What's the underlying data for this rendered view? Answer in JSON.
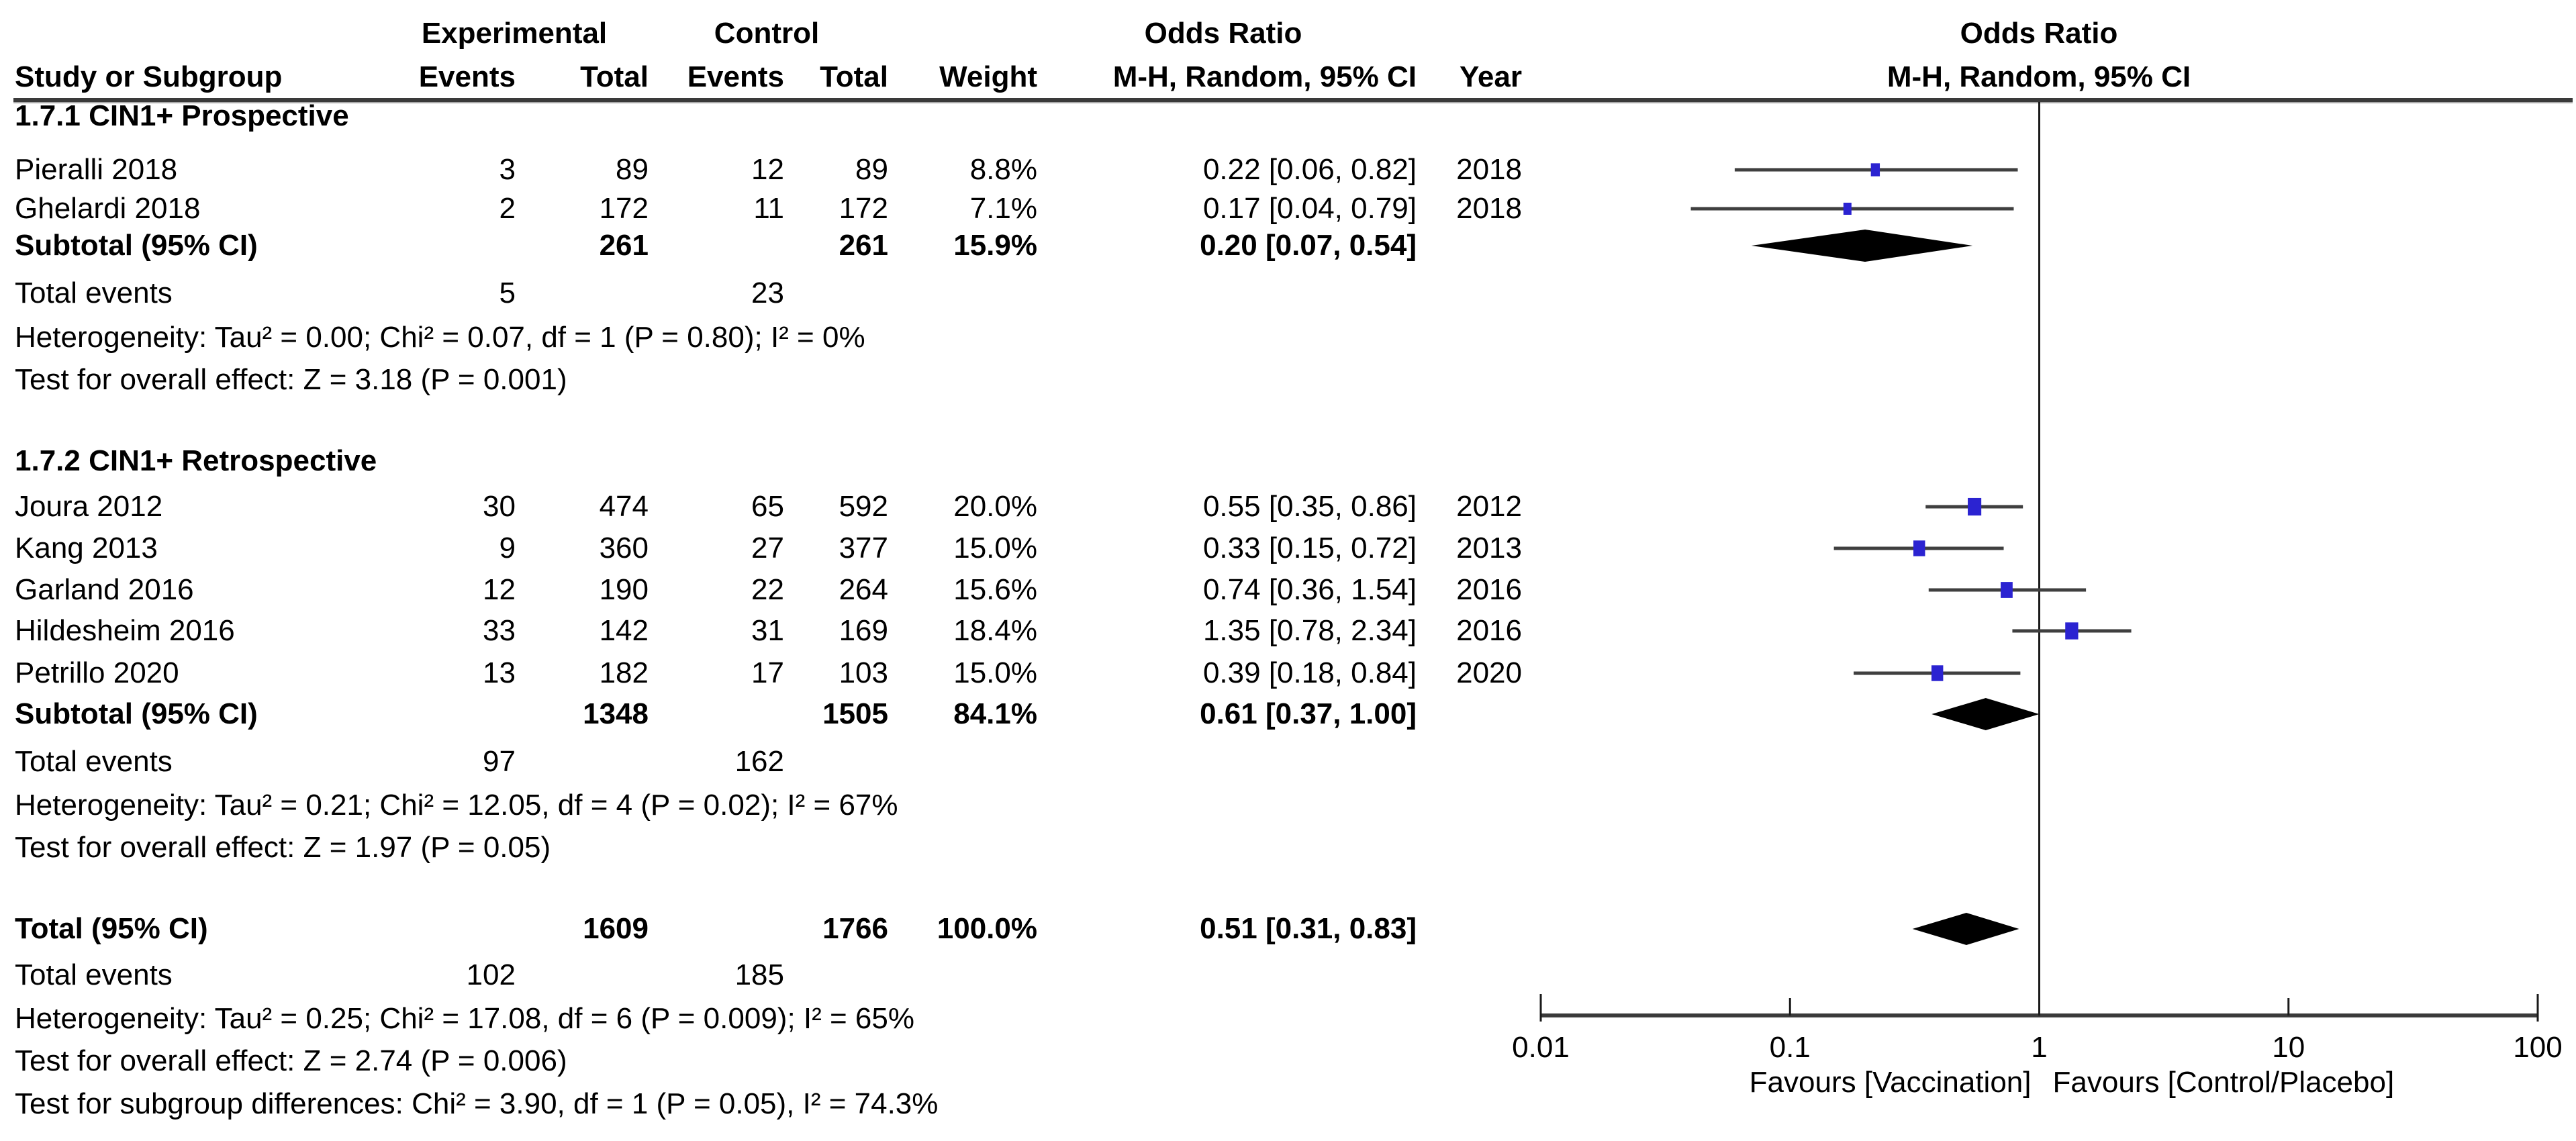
{
  "header": {
    "experimental": "Experimental",
    "control": "Control",
    "odds_ratio_left": "Odds Ratio",
    "odds_ratio_right": "Odds Ratio",
    "study_or_subgroup": "Study or Subgroup",
    "events_exp": "Events",
    "total_exp": "Total",
    "events_ctl": "Events",
    "total_ctl": "Total",
    "weight": "Weight",
    "mh_left": "M-H, Random, 95% CI",
    "year": "Year",
    "mh_right": "M-H, Random, 95% CI"
  },
  "colors": {
    "marker_blue": "#2B23D1",
    "ci_line_gray": "#3F3F3F",
    "rule_gray": "#3A3A3A",
    "rule_light": "#AAAAAA",
    "diamond_black": "#000000",
    "null_line": "#1A1A1A"
  },
  "chart_data": {
    "type": "forest",
    "effect_measure": "Odds Ratio",
    "method": "M-H, Random, 95% CI",
    "axis": {
      "scale": "log",
      "ticks": [
        "0.01",
        "0.1",
        "1",
        "10",
        "100"
      ],
      "tick_values": [
        0.01,
        0.1,
        1,
        10,
        100
      ],
      "favours_left": "Favours [Vaccination]",
      "favours_right": "Favours [Control/Placebo]"
    },
    "groups": [
      {
        "label": "1.7.1 CIN1+ Prospective",
        "studies": [
          {
            "study": "Pieralli 2018",
            "exp_events": "3",
            "exp_total": "89",
            "ctl_events": "12",
            "ctl_total": "89",
            "weight": "8.8%",
            "weight_val": 8.8,
            "or": 0.22,
            "ci_low": 0.06,
            "ci_high": 0.82,
            "or_text": "0.22 [0.06, 0.82]",
            "year": "2018"
          },
          {
            "study": "Ghelardi 2018",
            "exp_events": "2",
            "exp_total": "172",
            "ctl_events": "11",
            "ctl_total": "172",
            "weight": "7.1%",
            "weight_val": 7.1,
            "or": 0.17,
            "ci_low": 0.04,
            "ci_high": 0.79,
            "or_text": "0.17 [0.04, 0.79]",
            "year": "2018"
          }
        ],
        "subtotal": {
          "label": "Subtotal (95% CI)",
          "exp_total": "261",
          "ctl_total": "261",
          "weight": "15.9%",
          "or": 0.2,
          "ci_low": 0.07,
          "ci_high": 0.54,
          "or_text": "0.20 [0.07, 0.54]"
        },
        "total_events": {
          "label": "Total events",
          "experimental": "5",
          "control": "23"
        },
        "heterogeneity": "Heterogeneity: Tau² = 0.00; Chi² = 0.07, df = 1 (P = 0.80); I² = 0%",
        "overall_effect": "Test for overall effect: Z = 3.18 (P = 0.001)"
      },
      {
        "label": "1.7.2 CIN1+ Retrospective",
        "studies": [
          {
            "study": "Joura 2012",
            "exp_events": "30",
            "exp_total": "474",
            "ctl_events": "65",
            "ctl_total": "592",
            "weight": "20.0%",
            "weight_val": 20.0,
            "or": 0.55,
            "ci_low": 0.35,
            "ci_high": 0.86,
            "or_text": "0.55 [0.35, 0.86]",
            "year": "2012"
          },
          {
            "study": "Kang 2013",
            "exp_events": "9",
            "exp_total": "360",
            "ctl_events": "27",
            "ctl_total": "377",
            "weight": "15.0%",
            "weight_val": 15.0,
            "or": 0.33,
            "ci_low": 0.15,
            "ci_high": 0.72,
            "or_text": "0.33 [0.15, 0.72]",
            "year": "2013"
          },
          {
            "study": "Garland 2016",
            "exp_events": "12",
            "exp_total": "190",
            "ctl_events": "22",
            "ctl_total": "264",
            "weight": "15.6%",
            "weight_val": 15.6,
            "or": 0.74,
            "ci_low": 0.36,
            "ci_high": 1.54,
            "or_text": "0.74 [0.36, 1.54]",
            "year": "2016"
          },
          {
            "study": "Hildesheim 2016",
            "exp_events": "33",
            "exp_total": "142",
            "ctl_events": "31",
            "ctl_total": "169",
            "weight": "18.4%",
            "weight_val": 18.4,
            "or": 1.35,
            "ci_low": 0.78,
            "ci_high": 2.34,
            "or_text": "1.35 [0.78, 2.34]",
            "year": "2016"
          },
          {
            "study": "Petrillo 2020",
            "exp_events": "13",
            "exp_total": "182",
            "ctl_events": "17",
            "ctl_total": "103",
            "weight": "15.0%",
            "weight_val": 15.0,
            "or": 0.39,
            "ci_low": 0.18,
            "ci_high": 0.84,
            "or_text": "0.39 [0.18, 0.84]",
            "year": "2020"
          }
        ],
        "subtotal": {
          "label": "Subtotal (95% CI)",
          "exp_total": "1348",
          "ctl_total": "1505",
          "weight": "84.1%",
          "or": 0.61,
          "ci_low": 0.37,
          "ci_high": 1.0,
          "or_text": "0.61 [0.37, 1.00]"
        },
        "total_events": {
          "label": "Total events",
          "experimental": "97",
          "control": "162"
        },
        "heterogeneity": "Heterogeneity: Tau² = 0.21; Chi² = 12.05, df = 4 (P = 0.02); I² = 67%",
        "overall_effect": "Test for overall effect: Z = 1.97 (P = 0.05)"
      }
    ],
    "total": {
      "label": "Total (95% CI)",
      "exp_total": "1609",
      "ctl_total": "1766",
      "weight": "100.0%",
      "or": 0.51,
      "ci_low": 0.31,
      "ci_high": 0.83,
      "or_text": "0.51 [0.31, 0.83]"
    },
    "total_events": {
      "label": "Total events",
      "experimental": "102",
      "control": "185"
    },
    "heterogeneity": "Heterogeneity: Tau² = 0.25; Chi² = 17.08, df = 6 (P = 0.009); I² = 65%",
    "overall_effect": "Test for overall effect: Z = 2.74 (P = 0.006)",
    "subgroup_differences": "Test for subgroup differences: Chi² = 3.90, df = 1 (P = 0.05), I² = 74.3%"
  }
}
